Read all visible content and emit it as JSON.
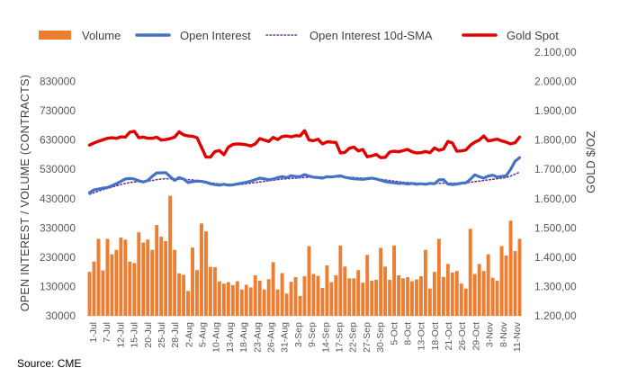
{
  "chart_data": {
    "type": "bar+line",
    "source": "Source: CME",
    "legend": {
      "placement": "top",
      "entries": [
        {
          "name": "Volume",
          "kind": "bar",
          "color": "#ED7D31"
        },
        {
          "name": "Open Interest",
          "kind": "line",
          "color": "#4472C4"
        },
        {
          "name": "Open Interest 10d-SMA",
          "kind": "dotted-line",
          "color": "#7030A0"
        },
        {
          "name": "Gold Spot",
          "kind": "line",
          "color": "#E00000"
        }
      ]
    },
    "y_left": {
      "label": "OPEN INTEREST / VOLUME (CONTRACTS)",
      "range": [
        30000,
        930000
      ],
      "ticks": [
        "30000",
        "130000",
        "230000",
        "330000",
        "430000",
        "530000",
        "630000",
        "730000",
        "830000"
      ]
    },
    "y_right": {
      "label": "GOLD $/OZ",
      "range": [
        1200,
        2100
      ],
      "ticks": [
        "1.200,00",
        "1.300,00",
        "1.400,00",
        "1.500,00",
        "1.600,00",
        "1.700,00",
        "1.800,00",
        "1.900,00",
        "2.000,00",
        "2.100,00"
      ]
    },
    "x_tick_labels": [
      "1-Jul",
      "7-Jul",
      "12-Jul",
      "15-Jul",
      "20-Jul",
      "25-Jul",
      "28-Jul",
      "2-Aug",
      "5-Aug",
      "10-Aug",
      "13-Aug",
      "18-Aug",
      "23-Aug",
      "26-Aug",
      "31-Aug",
      "3-Sep",
      "9-Sep",
      "14-Sep",
      "17-Sep",
      "22-Sep",
      "27-Sep",
      "30-Sep",
      "5-Oct",
      "8-Oct",
      "13-Oct",
      "18-Oct",
      "21-Oct",
      "26-Oct",
      "29-Oct",
      "3-Nov",
      "8-Nov",
      "11-Nov"
    ],
    "series": [
      {
        "name": "Volume",
        "axis": "left",
        "values": [
          180000,
          215000,
          293000,
          185000,
          293000,
          240000,
          255000,
          297000,
          290000,
          215000,
          210000,
          315000,
          280000,
          290000,
          255000,
          340000,
          300000,
          285000,
          440000,
          255000,
          175000,
          170000,
          115000,
          263000,
          186000,
          345000,
          318000,
          197000,
          196000,
          148000,
          140000,
          145000,
          135000,
          148000,
          120000,
          136000,
          127000,
          168000,
          150000,
          120000,
          155000,
          213000,
          120000,
          176000,
          106000,
          146000,
          162000,
          98000,
          165000,
          268000,
          173000,
          166000,
          125000,
          202000,
          145000,
          168000,
          270000,
          198000,
          158000,
          158000,
          186000,
          143000,
          238000,
          150000,
          153000,
          262000,
          198000,
          153000,
          270000,
          168000,
          158000,
          162000,
          148000,
          154000,
          165000,
          255000,
          123000,
          180000,
          293000,
          163000,
          207000,
          178000,
          183000,
          140000,
          123000,
          327000,
          173000,
          207000,
          183000,
          240000,
          160000,
          150000,
          268000,
          236000,
          355000,
          251000,
          293000
        ]
      },
      {
        "name": "Open Interest",
        "axis": "left",
        "values": [
          450000,
          460000,
          463000,
          466000,
          468000,
          474000,
          481000,
          489000,
          497000,
          499000,
          497000,
          491000,
          487000,
          492000,
          506000,
          518000,
          518000,
          519000,
          505000,
          492000,
          502000,
          497000,
          485000,
          488000,
          490000,
          489000,
          486000,
          481000,
          478000,
          476000,
          479000,
          476000,
          477000,
          480000,
          483000,
          486000,
          490000,
          495000,
          500000,
          498000,
          494000,
          497000,
          502000,
          505000,
          502000,
          508000,
          506000,
          505000,
          512000,
          507000,
          503000,
          502000,
          500000,
          505000,
          504000,
          506000,
          508000,
          503000,
          500000,
          498000,
          497000,
          496000,
          498000,
          500000,
          497000,
          493000,
          488000,
          486000,
          484000,
          482000,
          483000,
          480000,
          482000,
          479000,
          481000,
          479000,
          482000,
          481000,
          494000,
          495000,
          480000,
          478000,
          480000,
          483000,
          484000,
          496000,
          511000,
          505000,
          500000,
          507000,
          510000,
          504000,
          506000,
          508000,
          530000,
          558000,
          570000
        ]
      },
      {
        "name": "Open Interest 10d-SMA",
        "axis": "left",
        "values": [
          445000,
          450000,
          456000,
          461000,
          465000,
          469000,
          474000,
          478000,
          482000,
          485000,
          487000,
          488000,
          489000,
          490000,
          492000,
          495000,
          497000,
          498000,
          498000,
          497000,
          496000,
          496000,
          495000,
          494000,
          492000,
          490000,
          487000,
          484000,
          482000,
          480000,
          479000,
          478000,
          478000,
          478000,
          479000,
          481000,
          483000,
          485000,
          487000,
          489000,
          491000,
          493000,
          495000,
          497000,
          498000,
          499000,
          500000,
          501000,
          502000,
          503000,
          504000,
          504000,
          504000,
          504000,
          504000,
          504000,
          504000,
          504000,
          503000,
          502000,
          501000,
          500000,
          499000,
          498000,
          497000,
          496000,
          494000,
          492000,
          490000,
          488000,
          486000,
          485000,
          484000,
          483000,
          482000,
          481000,
          481000,
          481000,
          482000,
          483000,
          483000,
          483000,
          483000,
          483000,
          484000,
          486000,
          488000,
          490000,
          492000,
          494000,
          496000,
          498000,
          500000,
          502000,
          507000,
          514000,
          520000
        ]
      },
      {
        "name": "Gold Spot",
        "axis": "right",
        "values": [
          1783,
          1790,
          1796,
          1801,
          1806,
          1808,
          1806,
          1811,
          1810,
          1827,
          1830,
          1808,
          1810,
          1806,
          1806,
          1810,
          1800,
          1802,
          1805,
          1810,
          1828,
          1818,
          1814,
          1813,
          1808,
          1775,
          1742,
          1742,
          1761,
          1764,
          1750,
          1776,
          1785,
          1787,
          1786,
          1784,
          1780,
          1787,
          1805,
          1800,
          1795,
          1809,
          1802,
          1812,
          1814,
          1811,
          1815,
          1814,
          1832,
          1800,
          1798,
          1803,
          1787,
          1794,
          1793,
          1792,
          1756,
          1758,
          1772,
          1776,
          1763,
          1768,
          1743,
          1746,
          1751,
          1740,
          1741,
          1759,
          1762,
          1760,
          1764,
          1768,
          1760,
          1756,
          1757,
          1761,
          1757,
          1773,
          1765,
          1769,
          1795,
          1790,
          1762,
          1763,
          1766,
          1782,
          1793,
          1800,
          1814,
          1797,
          1800,
          1803,
          1797,
          1793,
          1787,
          1791,
          1810
        ]
      }
    ]
  }
}
